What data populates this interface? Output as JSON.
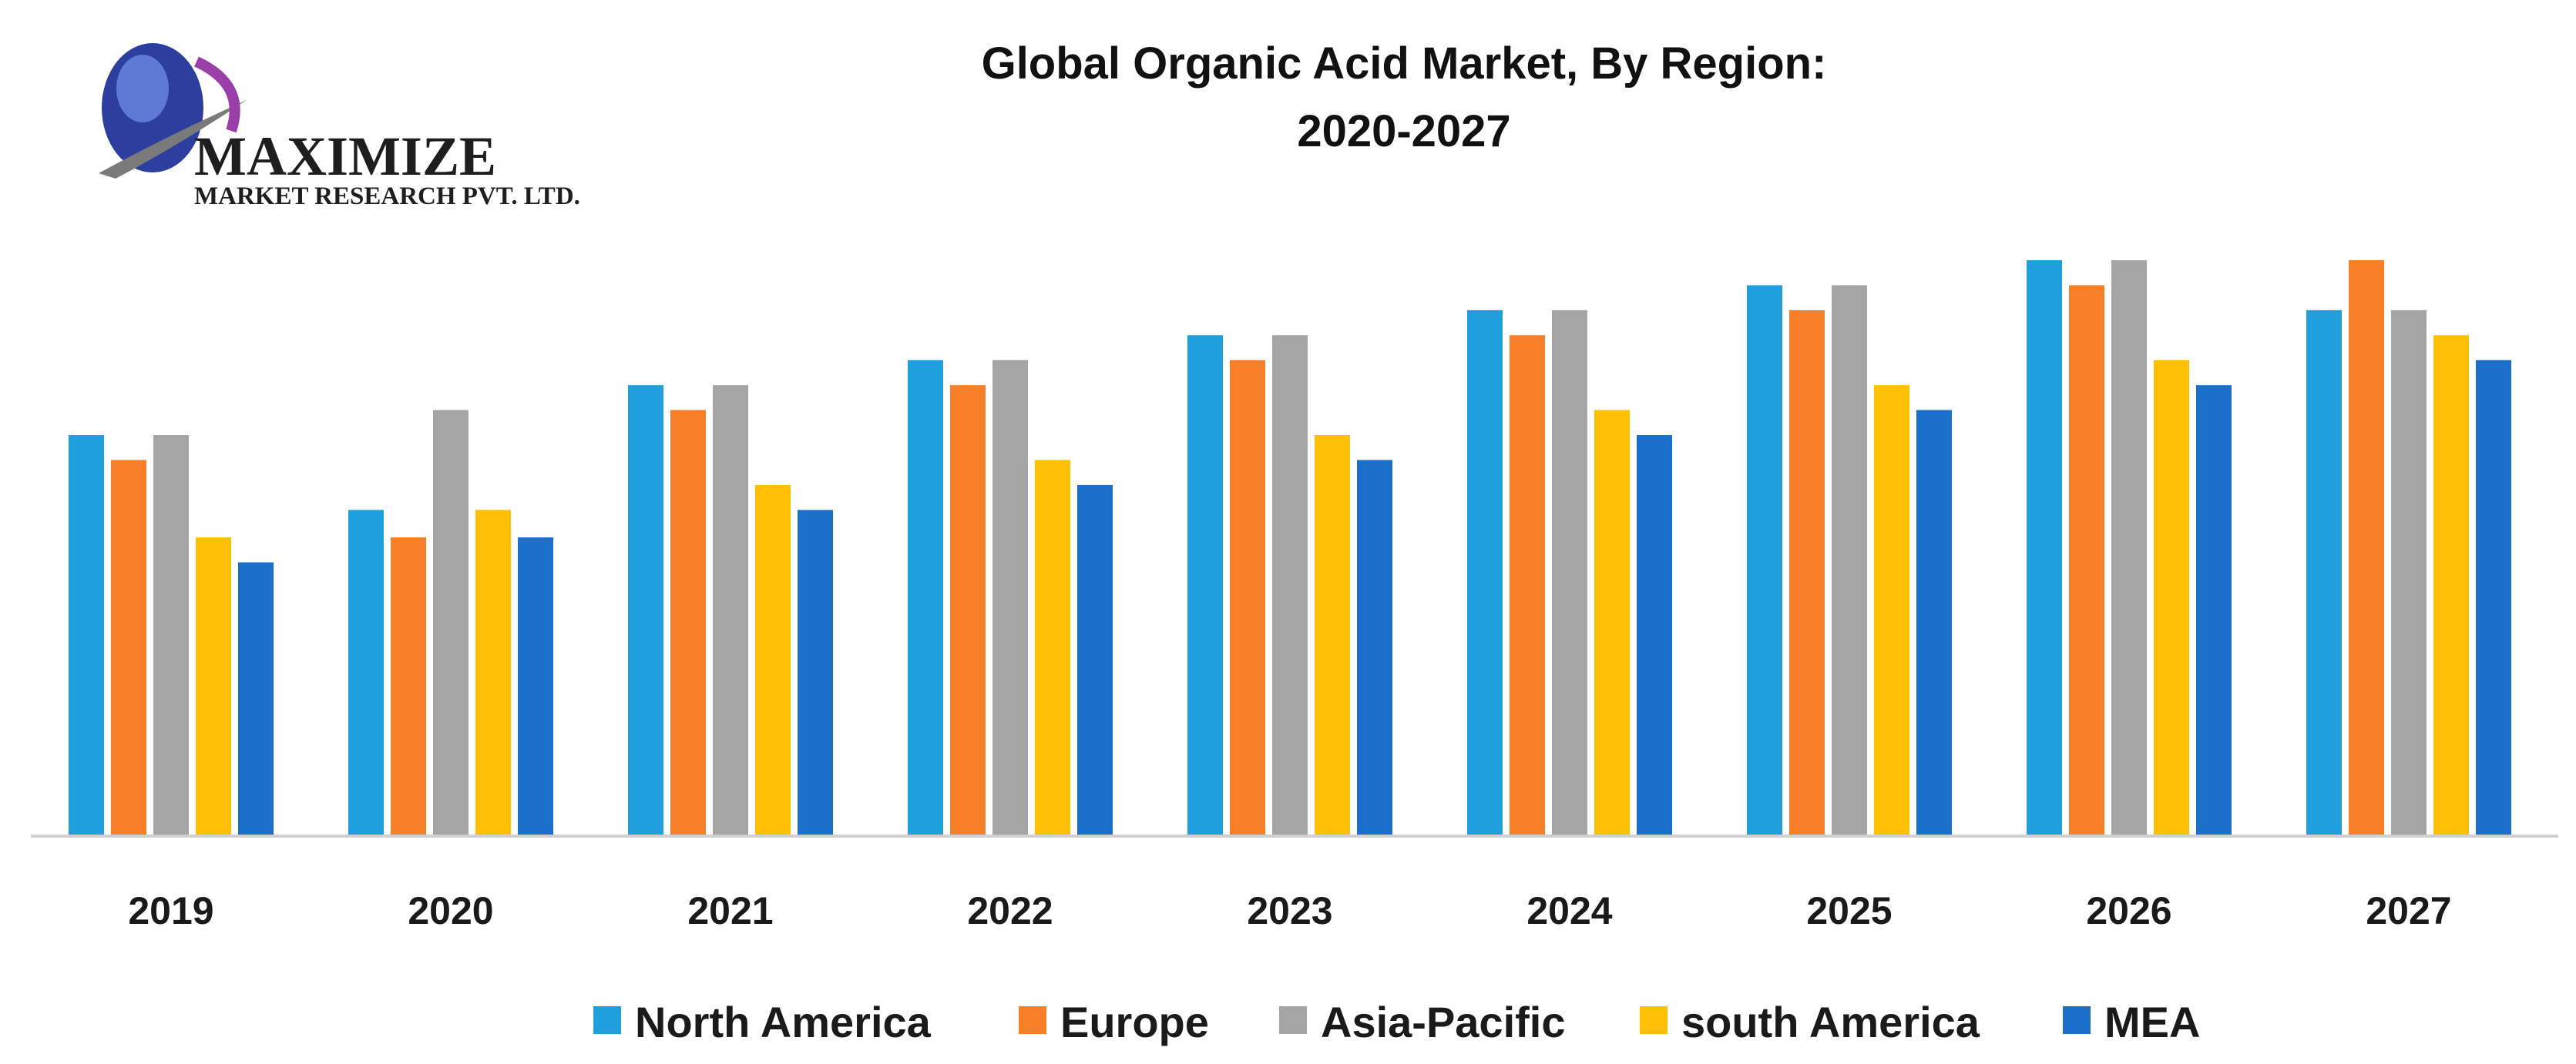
{
  "logo": {
    "name": "MAXIMIZE",
    "subtitle": "MARKET RESEARCH PVT. LTD."
  },
  "chart_data": {
    "type": "bar",
    "title": "Global Organic Acid Market, By Region:",
    "subtitle": "2020-2027",
    "xlabel": "",
    "ylabel": "",
    "categories": [
      "2019",
      "2020",
      "2021",
      "2022",
      "2023",
      "2024",
      "2025",
      "2026",
      "2027"
    ],
    "ylim": [
      0,
      23
    ],
    "grid": false,
    "legend_position": "bottom",
    "series": [
      {
        "name": "North America",
        "color": "#1f9fdb",
        "values": [
          16,
          13,
          18,
          19,
          20,
          21,
          22,
          23,
          21
        ]
      },
      {
        "name": "Europe",
        "color": "#f77f27",
        "values": [
          15,
          11.9,
          17,
          18,
          19,
          20,
          21,
          22,
          23
        ]
      },
      {
        "name": "Asia-Pacific",
        "color": "#a5a5a5",
        "values": [
          16,
          17,
          18,
          19,
          20,
          21,
          22,
          23,
          21
        ]
      },
      {
        "name": "south America",
        "color": "#fec005",
        "values": [
          11.9,
          13,
          14,
          15,
          16,
          17,
          18,
          19,
          20
        ]
      },
      {
        "name": "MEA",
        "color": "#1a6fcb",
        "values": [
          10.9,
          11.9,
          13,
          14,
          15,
          16,
          17,
          18,
          19
        ]
      }
    ]
  }
}
